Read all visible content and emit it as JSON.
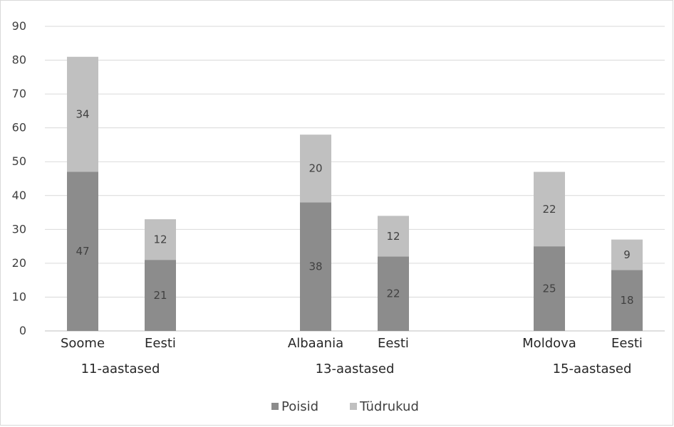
{
  "chart_data": {
    "type": "bar",
    "stacked": true,
    "title": "",
    "xlabel": "",
    "ylabel": "",
    "ylim": [
      0,
      90
    ],
    "yticks": [
      0,
      10,
      20,
      30,
      40,
      50,
      60,
      70,
      80,
      90
    ],
    "grid": true,
    "legend_position": "bottom",
    "groups": [
      {
        "label": "11-aastased",
        "categories": [
          "Soome",
          "Eesti"
        ]
      },
      {
        "label": "13-aastased",
        "categories": [
          "Albaania",
          "Eesti"
        ]
      },
      {
        "label": "15-aastased",
        "categories": [
          "Moldova",
          "Eesti"
        ]
      }
    ],
    "categories": [
      "Soome",
      "Eesti",
      "Albaania",
      "Eesti",
      "Moldova",
      "Eesti"
    ],
    "series": [
      {
        "name": "Poisid",
        "color": "#8c8c8c",
        "values": [
          47,
          21,
          38,
          22,
          25,
          18
        ]
      },
      {
        "name": "Tüdrukud",
        "color": "#c0c0c0",
        "values": [
          34,
          12,
          20,
          12,
          22,
          9
        ]
      }
    ]
  }
}
